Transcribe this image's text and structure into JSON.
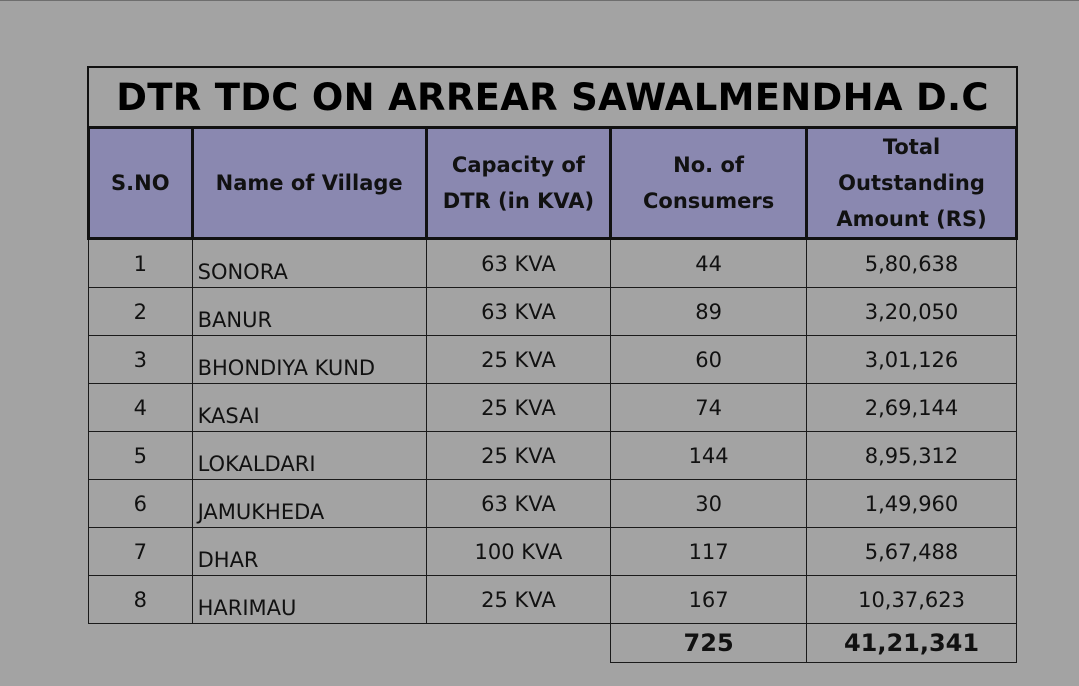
{
  "title": "DTR TDC ON ARREAR SAWALMENDHA D.C",
  "headers": {
    "sno": "S.NO",
    "village": "Name of Village",
    "capacity": "Capacity of DTR (in KVA)",
    "consumers": "No. of Consumers",
    "amount": "Total Outstanding Amount (RS)"
  },
  "rows": [
    {
      "sno": "1",
      "village": "SONORA",
      "capacity": "63 KVA",
      "consumers": "44",
      "amount": "5,80,638"
    },
    {
      "sno": "2",
      "village": "BANUR",
      "capacity": "63 KVA",
      "consumers": "89",
      "amount": "3,20,050"
    },
    {
      "sno": "3",
      "village": "BHONDIYA KUND",
      "capacity": "25 KVA",
      "consumers": "60",
      "amount": "3,01,126"
    },
    {
      "sno": "4",
      "village": "KASAI",
      "capacity": "25 KVA",
      "consumers": "74",
      "amount": "2,69,144"
    },
    {
      "sno": "5",
      "village": "LOKALDARI",
      "capacity": "25 KVA",
      "consumers": "144",
      "amount": "8,95,312"
    },
    {
      "sno": "6",
      "village": "JAMUKHEDA",
      "capacity": "63 KVA",
      "consumers": "30",
      "amount": "1,49,960"
    },
    {
      "sno": "7",
      "village": "DHAR",
      "capacity": "100 KVA",
      "consumers": "117",
      "amount": "5,67,488"
    },
    {
      "sno": "8",
      "village": "HARIMAU",
      "capacity": "25 KVA",
      "consumers": "167",
      "amount": "10,37,623"
    }
  ],
  "totals": {
    "consumers": "725",
    "amount": "41,21,341"
  }
}
